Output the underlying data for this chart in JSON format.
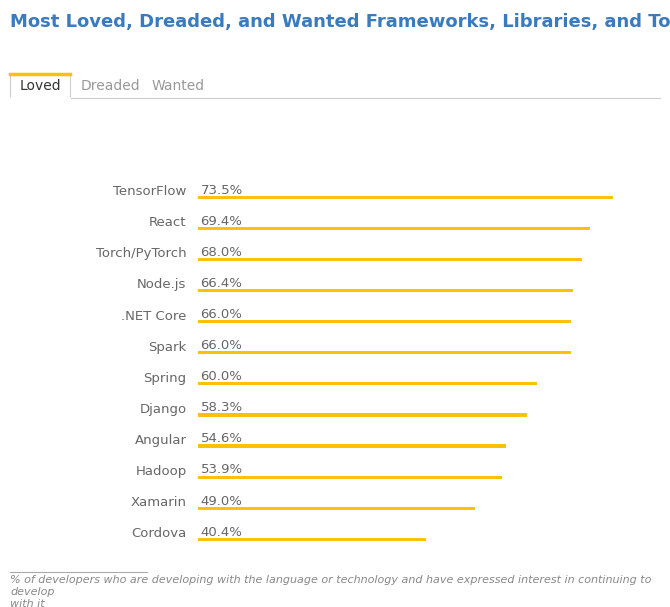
{
  "title": "Most Loved, Dreaded, and Wanted Frameworks, Libraries, and Tools",
  "tab_labels": [
    "Loved",
    "Dreaded",
    "Wanted"
  ],
  "categories": [
    "TensorFlow",
    "React",
    "Torch/PyTorch",
    "Node.js",
    ".NET Core",
    "Spark",
    "Spring",
    "Django",
    "Angular",
    "Hadoop",
    "Xamarin",
    "Cordova"
  ],
  "values": [
    73.5,
    69.4,
    68.0,
    66.4,
    66.0,
    66.0,
    60.0,
    58.3,
    54.6,
    53.9,
    49.0,
    40.4
  ],
  "bar_color": "#FFC107",
  "title_color": "#3a7abf",
  "label_color": "#666666",
  "value_color": "#666666",
  "tab_border_color": "#cccccc",
  "active_tab_underline": "#FFC107",
  "background_color": "#ffffff",
  "footnote": "% of developers who are developing with the language or technology and have expressed interest in continuing to develop\nwith it",
  "bar_max": 80,
  "bar_thickness": 3,
  "title_fontsize": 13,
  "label_fontsize": 9.5,
  "value_fontsize": 9.5,
  "tab_fontsize": 10,
  "footnote_fontsize": 8
}
